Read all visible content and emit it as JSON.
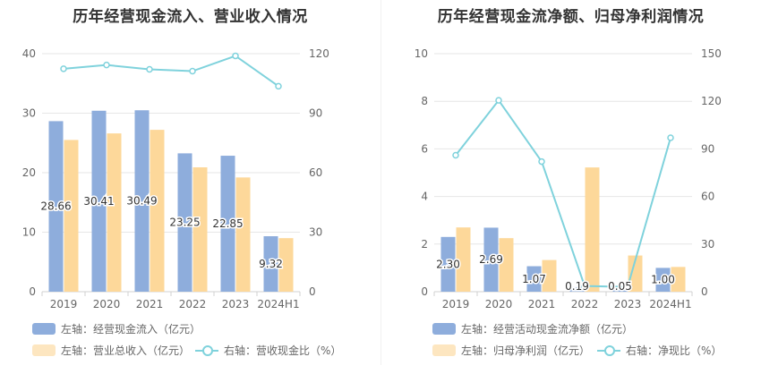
{
  "chart_data": [
    {
      "type": "bar",
      "title": "历年经营现金流入、营业收入情况",
      "categories": [
        "2019",
        "2020",
        "2021",
        "2022",
        "2023",
        "2024H1"
      ],
      "left_axis": {
        "min": 0,
        "max": 40,
        "ticks": [
          "0",
          "10",
          "20",
          "30",
          "40"
        ]
      },
      "right_axis": {
        "min": 0,
        "max": 120,
        "ticks": [
          "0",
          "30",
          "60",
          "90",
          "120"
        ]
      },
      "series": [
        {
          "name": "左轴：经营现金流入（亿元）",
          "type": "bar",
          "axis": "left",
          "color": "#8eaddc",
          "values": [
            28.66,
            30.41,
            30.49,
            23.25,
            22.85,
            9.32
          ],
          "labels": [
            "28.66",
            "30.41",
            "30.49",
            "23.25",
            "22.85",
            "9.32"
          ]
        },
        {
          "name": "左轴：营业总收入（亿元）",
          "type": "bar",
          "axis": "left",
          "color": "#fdd89a",
          "values": [
            25.5,
            26.6,
            27.2,
            20.9,
            19.2,
            9.0
          ]
        },
        {
          "name": "右轴：营收现金比（%）",
          "type": "line",
          "axis": "right",
          "color": "#7fd2dc",
          "values": [
            112.4,
            114.3,
            112.1,
            111.2,
            118.9,
            103.6
          ]
        }
      ]
    },
    {
      "type": "bar",
      "title": "历年经营现金流净额、归母净利润情况",
      "categories": [
        "2019",
        "2020",
        "2021",
        "2022",
        "2023",
        "2024H1"
      ],
      "left_axis": {
        "min": 0,
        "max": 10,
        "ticks": [
          "0",
          "2",
          "4",
          "6",
          "8",
          "10"
        ]
      },
      "right_axis": {
        "min": 0,
        "max": 150,
        "ticks": [
          "0",
          "30",
          "60",
          "90",
          "120",
          "150"
        ]
      },
      "series": [
        {
          "name": "左轴：经营活动现金流净额（亿元）",
          "type": "bar",
          "axis": "left",
          "color": "#8eaddc",
          "values": [
            2.3,
            2.69,
            1.07,
            0.19,
            0.05,
            1.0
          ],
          "labels": [
            "2.30",
            "2.69",
            "1.07",
            "0.19",
            "0.05",
            "1.00"
          ]
        },
        {
          "name": "左轴：归母净利润（亿元）",
          "type": "bar",
          "axis": "left",
          "color": "#fdd89a",
          "values": [
            2.7,
            2.25,
            1.33,
            5.22,
            1.52,
            1.04
          ]
        },
        {
          "name": "右轴：净现比（%）",
          "type": "line",
          "axis": "right",
          "color": "#7fd2dc",
          "values": [
            86.0,
            120.6,
            82.0,
            3.6,
            3.0,
            97.0
          ]
        }
      ]
    }
  ]
}
